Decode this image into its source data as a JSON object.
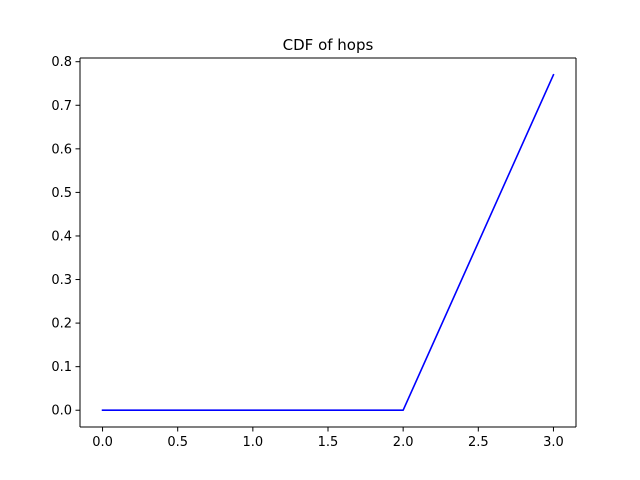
{
  "chart_data": {
    "type": "line",
    "title": "CDF of hops",
    "xlabel": "",
    "ylabel": "",
    "xlim": [
      -0.15,
      3.15
    ],
    "ylim": [
      -0.0385,
      0.8085
    ],
    "x_ticks": [
      0.0,
      0.5,
      1.0,
      1.5,
      2.0,
      2.5,
      3.0
    ],
    "x_tick_labels": [
      "0.0",
      "0.5",
      "1.0",
      "1.5",
      "2.0",
      "2.5",
      "3.0"
    ],
    "y_ticks": [
      0.0,
      0.1,
      0.2,
      0.3,
      0.4,
      0.5,
      0.6,
      0.7,
      0.8
    ],
    "y_tick_labels": [
      "0.0",
      "0.1",
      "0.2",
      "0.3",
      "0.4",
      "0.5",
      "0.6",
      "0.7",
      "0.8"
    ],
    "grid": false,
    "legend": "none",
    "series": [
      {
        "color": "#0000ff",
        "x": [
          0,
          1,
          2,
          3
        ],
        "y": [
          0.0,
          0.0,
          0.0,
          0.77
        ]
      }
    ]
  }
}
